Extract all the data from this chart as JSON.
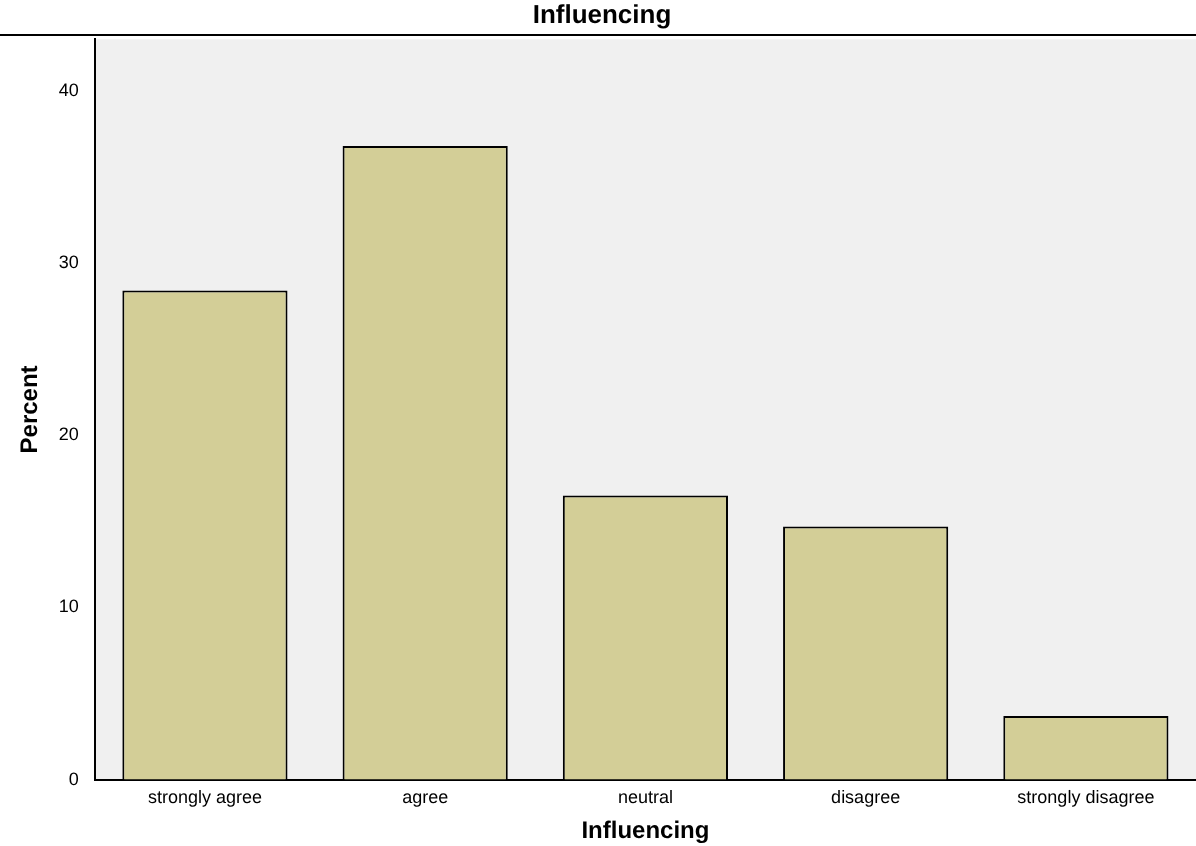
{
  "chart_data": {
    "type": "bar",
    "title": "Influencing",
    "xlabel": "Influencing",
    "ylabel": "Percent",
    "categories": [
      "strongly agree",
      "agree",
      "neutral",
      "disagree",
      "strongly disagree"
    ],
    "values": [
      28.4,
      36.8,
      16.5,
      14.7,
      3.7
    ],
    "color": "#d3ce97",
    "ylim": [
      0,
      43
    ],
    "yticks": [
      0,
      10,
      20,
      30,
      40
    ],
    "grid": false,
    "legend": false
  }
}
